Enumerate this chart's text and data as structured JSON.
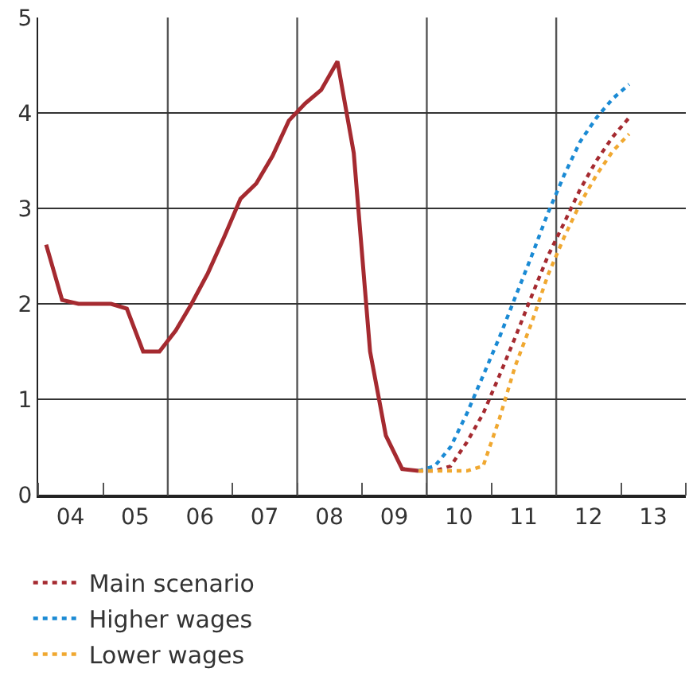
{
  "chart_data": {
    "type": "line",
    "xlim": [
      "2004",
      "2014"
    ],
    "xticks": [
      {
        "value": "2004-07-01",
        "label": "04"
      },
      {
        "value": "2005-07-01",
        "label": "05"
      },
      {
        "value": "2006-07-01",
        "label": "06"
      },
      {
        "value": "2007-07-01",
        "label": "07"
      },
      {
        "value": "2008-07-01",
        "label": "08"
      },
      {
        "value": "2009-07-01",
        "label": "09"
      },
      {
        "value": "2010-07-01",
        "label": "10"
      },
      {
        "value": "2011-07-01",
        "label": "11"
      },
      {
        "value": "2012-07-01",
        "label": "12"
      },
      {
        "value": "2013-07-01",
        "label": "13"
      }
    ],
    "ylim": [
      0,
      5
    ],
    "yticks": [
      0,
      1,
      2,
      3,
      4,
      5
    ],
    "grid": "y",
    "legend": "bottom left",
    "ref_lines": [
      {
        "axis": "x",
        "value": "2006",
        "color": "#555555"
      },
      {
        "axis": "x",
        "value": "2008",
        "color": "#555555"
      },
      {
        "axis": "x",
        "value": "2010",
        "color": "#555555"
      },
      {
        "axis": "x",
        "value": "2012",
        "color": "#555555"
      }
    ],
    "series": [
      {
        "color": "#a52a30",
        "line_style": "solid",
        "x": [
          "2004-02-15",
          "2004-05-15",
          "2004-08-15",
          "2004-11-15",
          "2005-02-15",
          "2005-05-15",
          "2005-08-15",
          "2005-11-15",
          "2006-02-15",
          "2006-05-15",
          "2006-08-15",
          "2006-11-15",
          "2007-02-15",
          "2007-05-15",
          "2007-08-15",
          "2007-11-15",
          "2008-02-15",
          "2008-05-15",
          "2008-08-15",
          "2008-11-15",
          "2009-02-15",
          "2009-05-15",
          "2009-08-15",
          "2009-11-15"
        ],
        "values": [
          2.62,
          2.04,
          2.0,
          2.0,
          2.0,
          1.95,
          1.5,
          1.5,
          1.72,
          2.0,
          2.32,
          2.7,
          3.1,
          3.26,
          3.55,
          3.92,
          4.1,
          4.24,
          4.54,
          3.58,
          1.5,
          0.62,
          0.27,
          0.25
        ]
      },
      {
        "name": "Main scenario",
        "color": "#a52a30",
        "line_style": "dotted",
        "x": [
          "2009-11-15",
          "2010-02-15",
          "2010-05-15",
          "2010-08-15",
          "2010-11-15",
          "2011-02-15",
          "2011-05-15",
          "2011-08-15",
          "2011-11-15",
          "2012-02-15",
          "2012-05-15",
          "2012-08-15",
          "2012-11-15",
          "2013-02-15"
        ],
        "values": [
          0.25,
          0.25,
          0.3,
          0.55,
          0.85,
          1.25,
          1.65,
          2.08,
          2.5,
          2.85,
          3.2,
          3.5,
          3.75,
          3.95
        ]
      },
      {
        "name": "Higher wages",
        "color": "#1a8ad4",
        "line_style": "dotted",
        "x": [
          "2009-11-15",
          "2010-02-15",
          "2010-05-15",
          "2010-08-15",
          "2010-11-15",
          "2011-02-15",
          "2011-05-15",
          "2011-08-15",
          "2011-11-15",
          "2012-02-15",
          "2012-05-15",
          "2012-08-15",
          "2012-11-15",
          "2013-02-15"
        ],
        "values": [
          0.25,
          0.3,
          0.5,
          0.85,
          1.25,
          1.65,
          2.07,
          2.5,
          2.95,
          3.35,
          3.7,
          3.95,
          4.15,
          4.3
        ]
      },
      {
        "name": "Lower wages",
        "color": "#f0a830",
        "line_style": "dotted",
        "x": [
          "2009-11-15",
          "2010-02-15",
          "2010-05-15",
          "2010-08-15",
          "2010-11-15",
          "2011-02-15",
          "2011-05-15",
          "2011-08-15",
          "2011-11-15",
          "2012-02-15",
          "2012-05-15",
          "2012-08-15",
          "2012-11-15",
          "2013-02-15"
        ],
        "values": [
          0.25,
          0.25,
          0.25,
          0.25,
          0.3,
          0.8,
          1.35,
          1.8,
          2.3,
          2.7,
          3.05,
          3.35,
          3.6,
          3.78
        ]
      }
    ]
  }
}
